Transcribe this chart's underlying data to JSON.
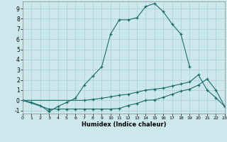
{
  "xlabel": "Humidex (Indice chaleur)",
  "xlim": [
    0,
    23
  ],
  "ylim": [
    -1.3,
    9.7
  ],
  "xticks": [
    0,
    1,
    2,
    3,
    4,
    5,
    6,
    7,
    8,
    9,
    10,
    11,
    12,
    13,
    14,
    15,
    16,
    17,
    18,
    19,
    20,
    21,
    22,
    23
  ],
  "yticks": [
    -1,
    0,
    1,
    2,
    3,
    4,
    5,
    6,
    7,
    8,
    9
  ],
  "bg_color": "#cde8ec",
  "grid_color": "#aacdd4",
  "line_color": "#1a6b6b",
  "curve1_x": [
    0,
    1,
    2,
    3,
    4,
    5,
    6,
    7,
    8,
    9,
    10,
    11,
    12,
    13,
    14,
    15,
    16,
    17,
    18,
    19
  ],
  "curve1_y": [
    0.0,
    -0.2,
    -0.5,
    -1.1,
    -0.6,
    -0.2,
    0.2,
    1.5,
    2.4,
    3.3,
    6.5,
    7.9,
    7.9,
    8.1,
    9.2,
    9.5,
    8.7,
    7.5,
    6.5,
    3.3
  ],
  "curve2_x": [
    0,
    3,
    4,
    5,
    6,
    7,
    8,
    9,
    10,
    11,
    12,
    13,
    14,
    15,
    16,
    17,
    18,
    19,
    20,
    21,
    22,
    23
  ],
  "curve2_y": [
    0.0,
    -0.85,
    -0.85,
    -0.85,
    -0.85,
    -0.85,
    -0.85,
    -0.85,
    -0.85,
    -0.8,
    -0.5,
    -0.3,
    0.0,
    0.05,
    0.3,
    0.6,
    0.9,
    1.1,
    1.5,
    2.1,
    1.0,
    -0.6
  ],
  "curve3_x": [
    0,
    7,
    8,
    9,
    10,
    11,
    12,
    13,
    14,
    15,
    16,
    17,
    18,
    19,
    20,
    21,
    22,
    23
  ],
  "curve3_y": [
    0.0,
    0.0,
    0.1,
    0.2,
    0.35,
    0.5,
    0.6,
    0.8,
    1.0,
    1.1,
    1.2,
    1.4,
    1.6,
    1.8,
    2.5,
    1.0,
    0.25,
    -0.6
  ]
}
